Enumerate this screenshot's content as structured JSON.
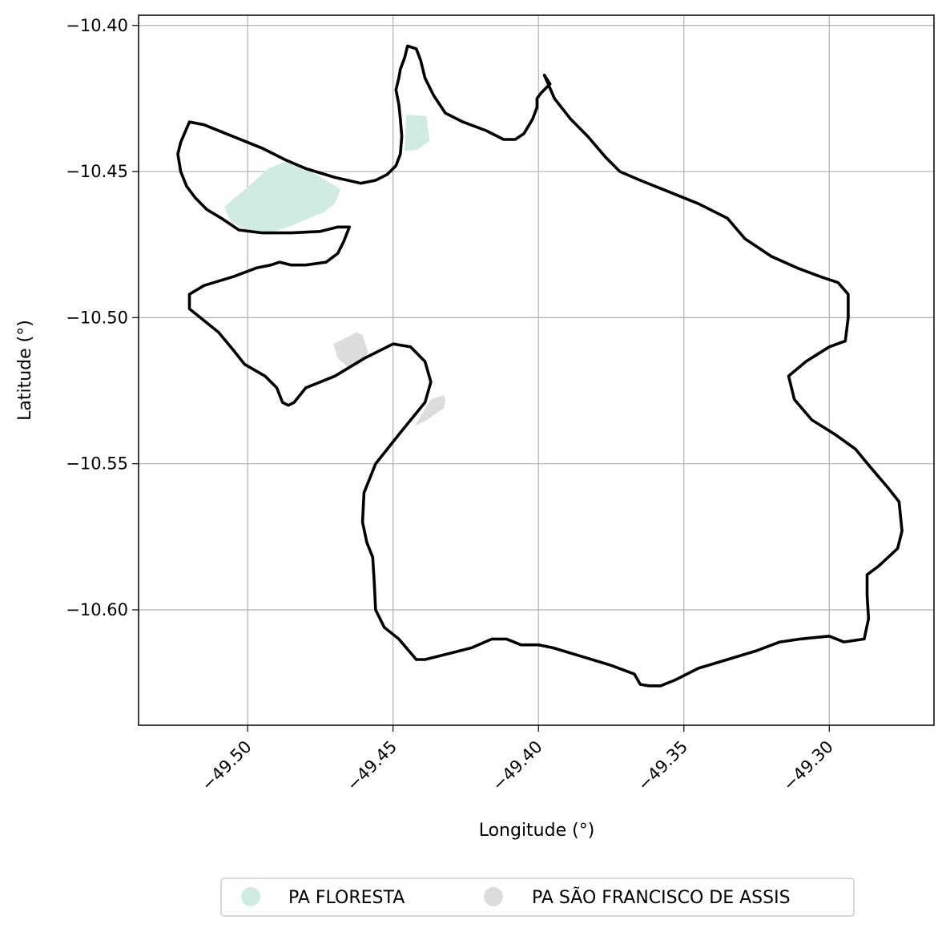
{
  "chart_data": {
    "type": "map",
    "xlabel": "Longitude (°)",
    "ylabel": "Latitude (°)",
    "xlim": [
      -49.5375,
      -49.264
    ],
    "ylim": [
      -10.6395,
      -10.3965
    ],
    "grid": true,
    "x_ticks": [
      {
        "value": -49.5,
        "label": "−49.50"
      },
      {
        "value": -49.45,
        "label": "−49.45"
      },
      {
        "value": -49.4,
        "label": "−49.40"
      },
      {
        "value": -49.35,
        "label": "−49.35"
      },
      {
        "value": -49.3,
        "label": "−49.30"
      }
    ],
    "y_ticks": [
      {
        "value": -10.4,
        "label": "−10.40"
      },
      {
        "value": -10.45,
        "label": "−10.45"
      },
      {
        "value": -10.5,
        "label": "−10.50"
      },
      {
        "value": -10.55,
        "label": "−10.55"
      },
      {
        "value": -10.6,
        "label": "−10.60"
      }
    ],
    "legend_position": "bottom-center",
    "areas": [
      {
        "name": "PA FLORESTA",
        "color": "#d0ebdf",
        "coords": [
          [
            -49.508,
            -10.462
          ],
          [
            -49.499,
            -10.4545
          ],
          [
            -49.493,
            -10.449
          ],
          [
            -49.4855,
            -10.446
          ],
          [
            -49.473,
            -10.453
          ],
          [
            -49.468,
            -10.456
          ],
          [
            -49.47,
            -10.461
          ],
          [
            -49.474,
            -10.464
          ],
          [
            -49.479,
            -10.466
          ],
          [
            -49.486,
            -10.469
          ],
          [
            -49.493,
            -10.471
          ],
          [
            -49.5,
            -10.4705
          ],
          [
            -49.506,
            -10.467
          ]
        ]
      },
      {
        "name": "PA FLORESTA",
        "color": "#d0ebdf",
        "coords": [
          [
            -49.4455,
            -10.4305
          ],
          [
            -49.4385,
            -10.431
          ],
          [
            -49.4375,
            -10.4395
          ],
          [
            -49.4415,
            -10.4425
          ],
          [
            -49.446,
            -10.443
          ]
        ]
      },
      {
        "name": "PA SÃO FRANCISCO DE ASSIS",
        "color": "#dcdcdc",
        "coords": [
          [
            -49.4705,
            -10.509
          ],
          [
            -49.4625,
            -10.505
          ],
          [
            -49.4605,
            -10.506
          ],
          [
            -49.4585,
            -10.512
          ],
          [
            -49.4615,
            -10.516
          ],
          [
            -49.4655,
            -10.517
          ],
          [
            -49.469,
            -10.514
          ]
        ]
      },
      {
        "name": "PA SÃO FRANCISCO DE ASSIS",
        "color": "#dcdcdc",
        "coords": [
          [
            -49.4325,
            -10.5265
          ],
          [
            -49.437,
            -10.528
          ],
          [
            -49.4425,
            -10.537
          ],
          [
            -49.448,
            -10.5395
          ],
          [
            -49.439,
            -10.5355
          ],
          [
            -49.4325,
            -10.531
          ],
          [
            -49.432,
            -10.5285
          ]
        ]
      }
    ],
    "boundary": {
      "color": "#000000",
      "coords": [
        [
          -49.398,
          -10.417
        ],
        [
          -49.3945,
          -10.425
        ],
        [
          -49.389,
          -10.432
        ],
        [
          -49.383,
          -10.438
        ],
        [
          -49.377,
          -10.445
        ],
        [
          -49.372,
          -10.45
        ],
        [
          -49.365,
          -10.453
        ],
        [
          -49.355,
          -10.457
        ],
        [
          -49.345,
          -10.461
        ],
        [
          -49.335,
          -10.466
        ],
        [
          -49.329,
          -10.473
        ],
        [
          -49.32,
          -10.479
        ],
        [
          -49.311,
          -10.483
        ],
        [
          -49.303,
          -10.486
        ],
        [
          -49.297,
          -10.488
        ],
        [
          -49.2935,
          -10.492
        ],
        [
          -49.2935,
          -10.5
        ],
        [
          -49.2945,
          -10.508
        ],
        [
          -49.3,
          -10.51
        ],
        [
          -49.308,
          -10.515
        ],
        [
          -49.314,
          -10.52
        ],
        [
          -49.312,
          -10.528
        ],
        [
          -49.306,
          -10.535
        ],
        [
          -49.298,
          -10.54
        ],
        [
          -49.291,
          -10.545
        ],
        [
          -49.286,
          -10.551
        ],
        [
          -49.28,
          -10.558
        ],
        [
          -49.276,
          -10.563
        ],
        [
          -49.275,
          -10.573
        ],
        [
          -49.2765,
          -10.579
        ],
        [
          -49.283,
          -10.585
        ],
        [
          -49.287,
          -10.588
        ],
        [
          -49.287,
          -10.595
        ],
        [
          -49.2865,
          -10.603
        ],
        [
          -49.288,
          -10.61
        ],
        [
          -49.295,
          -10.611
        ],
        [
          -49.3,
          -10.609
        ],
        [
          -49.31,
          -10.61
        ],
        [
          -49.317,
          -10.611
        ],
        [
          -49.325,
          -10.614
        ],
        [
          -49.335,
          -10.617
        ],
        [
          -49.345,
          -10.62
        ],
        [
          -49.353,
          -10.624
        ],
        [
          -49.358,
          -10.626
        ],
        [
          -49.362,
          -10.626
        ],
        [
          -49.365,
          -10.6255
        ],
        [
          -49.367,
          -10.622
        ],
        [
          -49.375,
          -10.619
        ],
        [
          -49.385,
          -10.616
        ],
        [
          -49.395,
          -10.613
        ],
        [
          -49.4,
          -10.612
        ],
        [
          -49.406,
          -10.612
        ],
        [
          -49.411,
          -10.61
        ],
        [
          -49.416,
          -10.61
        ],
        [
          -49.423,
          -10.613
        ],
        [
          -49.431,
          -10.615
        ],
        [
          -49.439,
          -10.617
        ],
        [
          -49.442,
          -10.617
        ],
        [
          -49.448,
          -10.61
        ],
        [
          -49.453,
          -10.606
        ],
        [
          -49.456,
          -10.6
        ],
        [
          -49.4565,
          -10.59
        ],
        [
          -49.457,
          -10.582
        ],
        [
          -49.459,
          -10.577
        ],
        [
          -49.4605,
          -10.57
        ],
        [
          -49.46,
          -10.56
        ],
        [
          -49.456,
          -10.55
        ],
        [
          -49.448,
          -10.54
        ],
        [
          -49.439,
          -10.529
        ],
        [
          -49.437,
          -10.522
        ],
        [
          -49.439,
          -10.515
        ],
        [
          -49.444,
          -10.51
        ],
        [
          -49.45,
          -10.509
        ],
        [
          -49.46,
          -10.514
        ],
        [
          -49.47,
          -10.52
        ],
        [
          -49.48,
          -10.524
        ],
        [
          -49.484,
          -10.529
        ],
        [
          -49.486,
          -10.53
        ],
        [
          -49.488,
          -10.529
        ],
        [
          -49.49,
          -10.524
        ],
        [
          -49.494,
          -10.52
        ],
        [
          -49.501,
          -10.516
        ],
        [
          -49.505,
          -10.511
        ],
        [
          -49.51,
          -10.505
        ],
        [
          -49.515,
          -10.501
        ],
        [
          -49.52,
          -10.497
        ],
        [
          -49.52,
          -10.492
        ],
        [
          -49.515,
          -10.489
        ],
        [
          -49.505,
          -10.486
        ],
        [
          -49.497,
          -10.483
        ],
        [
          -49.492,
          -10.482
        ],
        [
          -49.489,
          -10.481
        ],
        [
          -49.485,
          -10.482
        ],
        [
          -49.48,
          -10.482
        ],
        [
          -49.473,
          -10.481
        ],
        [
          -49.469,
          -10.478
        ],
        [
          -49.467,
          -10.474
        ],
        [
          -49.465,
          -10.469
        ],
        [
          -49.469,
          -10.469
        ],
        [
          -49.475,
          -10.4705
        ],
        [
          -49.485,
          -10.471
        ],
        [
          -49.495,
          -10.471
        ],
        [
          -49.503,
          -10.47
        ],
        [
          -49.509,
          -10.466
        ],
        [
          -49.514,
          -10.463
        ],
        [
          -49.518,
          -10.459
        ],
        [
          -49.521,
          -10.455
        ],
        [
          -49.523,
          -10.45
        ],
        [
          -49.524,
          -10.444
        ],
        [
          -49.523,
          -10.44
        ],
        [
          -49.52,
          -10.433
        ],
        [
          -49.515,
          -10.434
        ],
        [
          -49.505,
          -10.438
        ],
        [
          -49.495,
          -10.442
        ],
        [
          -49.487,
          -10.446
        ],
        [
          -49.48,
          -10.449
        ],
        [
          -49.47,
          -10.452
        ],
        [
          -49.461,
          -10.454
        ],
        [
          -49.456,
          -10.453
        ],
        [
          -49.452,
          -10.451
        ],
        [
          -49.449,
          -10.448
        ],
        [
          -49.4475,
          -10.444
        ],
        [
          -49.447,
          -10.438
        ],
        [
          -49.4475,
          -10.432
        ],
        [
          -49.448,
          -10.427
        ],
        [
          -49.449,
          -10.422
        ],
        [
          -49.448,
          -10.418
        ],
        [
          -49.4475,
          -10.415
        ],
        [
          -49.446,
          -10.411
        ],
        [
          -49.445,
          -10.407
        ],
        [
          -49.442,
          -10.408
        ],
        [
          -49.4405,
          -10.412
        ],
        [
          -49.439,
          -10.418
        ],
        [
          -49.436,
          -10.424
        ],
        [
          -49.432,
          -10.43
        ],
        [
          -49.426,
          -10.433
        ],
        [
          -49.418,
          -10.436
        ],
        [
          -49.412,
          -10.439
        ],
        [
          -49.408,
          -10.439
        ],
        [
          -49.405,
          -10.437
        ],
        [
          -49.402,
          -10.432
        ],
        [
          -49.4005,
          -10.428
        ],
        [
          -49.4005,
          -10.425
        ],
        [
          -49.399,
          -10.423
        ],
        [
          -49.396,
          -10.42
        ],
        [
          -49.398,
          -10.417
        ]
      ]
    },
    "legend": [
      {
        "label": "PA FLORESTA",
        "color": "#d0ebdf"
      },
      {
        "label": "PA SÃO FRANCISCO DE ASSIS",
        "color": "#dcdcdc"
      }
    ]
  }
}
